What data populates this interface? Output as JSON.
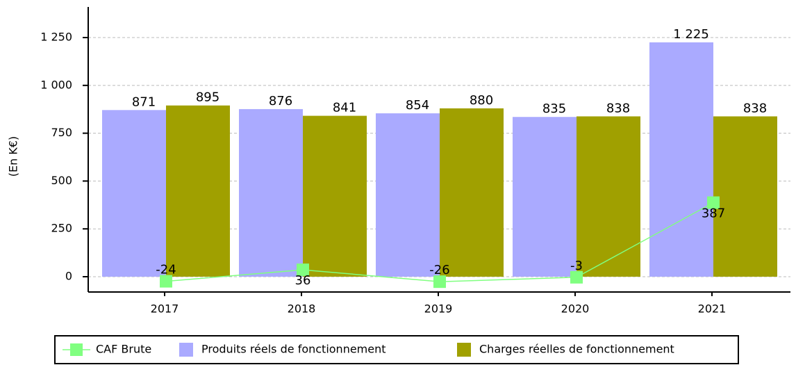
{
  "chart_data": {
    "type": "bar",
    "y_label": "(En K€)",
    "categories": [
      "2017",
      "2018",
      "2019",
      "2020",
      "2021"
    ],
    "series": [
      {
        "name": "CAF Brute",
        "type": "line",
        "color": "#80ff80",
        "values": [
          -24,
          36,
          -26,
          -3,
          387
        ]
      },
      {
        "name": "Produits réels de fonctionnement",
        "type": "bar",
        "color": "#aaaaff",
        "values": [
          871,
          876,
          854,
          835,
          1225
        ],
        "value_labels": [
          "871",
          "876",
          "854",
          "835",
          "1 225"
        ]
      },
      {
        "name": "Charges réelles de fonctionnement",
        "type": "bar",
        "color": "#a0a000",
        "values": [
          895,
          841,
          880,
          838,
          838
        ]
      }
    ],
    "ylim": [
      -80,
      1410
    ],
    "yticks": [
      0,
      250,
      500,
      750,
      {
        "value": 1000,
        "label": "1 000"
      },
      {
        "value": 1250,
        "label": "1 250"
      }
    ],
    "grid": true
  }
}
